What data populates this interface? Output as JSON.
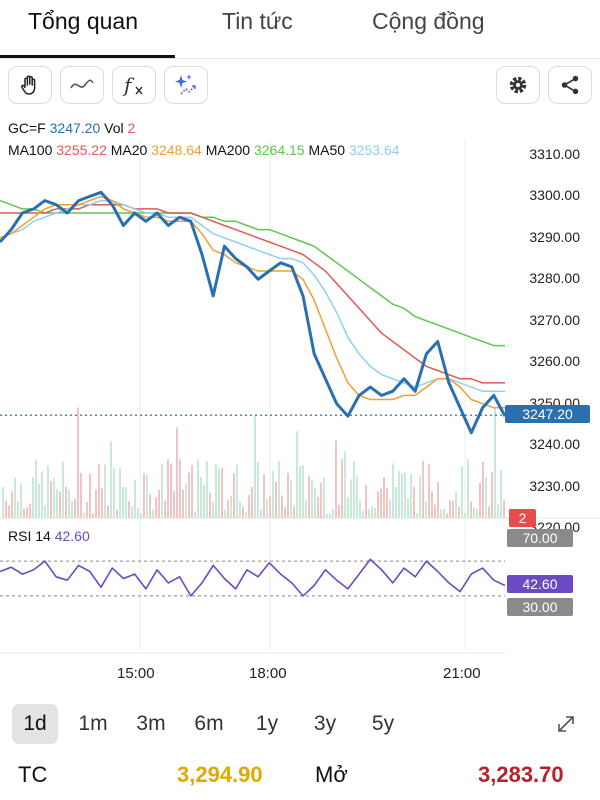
{
  "tabs": [
    {
      "label": "Tổng quan",
      "active": true
    },
    {
      "label": "Tin tức"
    },
    {
      "label": "Cộng đồng"
    }
  ],
  "toolbar": {
    "icons": [
      "hand-icon",
      "line-icon",
      "function-icon",
      "sparkle-icon",
      "gear-icon",
      "share-icon"
    ],
    "fx_label": "f"
  },
  "quote": {
    "symbol": "GC=F",
    "price": "3247.20",
    "vol_label": "Vol",
    "vol": "2"
  },
  "ma": [
    {
      "label": "MA100",
      "value": "3255.22",
      "color": "#e05a55"
    },
    {
      "label": "MA20",
      "value": "3248.64",
      "color": "#f0a030"
    },
    {
      "label": "MA200",
      "value": "3264.15",
      "color": "#5dc84e"
    },
    {
      "label": "MA50",
      "value": "3253.64",
      "color": "#8fd0f0"
    }
  ],
  "rsi": {
    "label": "RSI 14",
    "value": "42.60",
    "upper": "70.00",
    "lower": "30.00",
    "color": "#6a4bc4"
  },
  "chart_data": {
    "type": "line",
    "x_ticks": [
      "15:00",
      "18:00",
      "21:00"
    ],
    "y_ticks": [
      "3310.00",
      "3300.00",
      "3290.00",
      "3280.00",
      "3270.00",
      "3260.00",
      "3250.00",
      "3240.00",
      "3230.00",
      "3220.00"
    ],
    "ylim": [
      3220,
      3310
    ],
    "last_price": "3247.20",
    "vol_tag": "2",
    "price_color": "#2a6fb0",
    "series": [
      {
        "name": "GC=F",
        "values": [
          3289,
          3292,
          3296,
          3297,
          3299,
          3298,
          3296,
          3299,
          3300,
          3301,
          3298,
          3293,
          3296,
          3294,
          3296,
          3293,
          3295,
          3294,
          3286,
          3276,
          3288,
          3285,
          3283,
          3280,
          3282,
          3284,
          3283,
          3276,
          3262,
          3256,
          3250,
          3247,
          3252,
          3254,
          3252,
          3253,
          3256,
          3253,
          3262,
          3265,
          3255,
          3249,
          3243,
          3249,
          3252,
          3247
        ]
      },
      {
        "name": "MA20",
        "values": [
          3290,
          3291,
          3293,
          3295,
          3297,
          3298,
          3298,
          3298,
          3299,
          3300,
          3299,
          3297,
          3296,
          3295,
          3295,
          3294,
          3294,
          3294,
          3291,
          3287,
          3286,
          3284,
          3283,
          3282,
          3282,
          3282,
          3282,
          3280,
          3275,
          3268,
          3261,
          3255,
          3252,
          3251,
          3251,
          3251,
          3252,
          3252,
          3254,
          3256,
          3256,
          3254,
          3251,
          3250,
          3249,
          3249
        ]
      },
      {
        "name": "MA50",
        "values": [
          3290,
          3291,
          3292,
          3294,
          3295,
          3296,
          3297,
          3298,
          3298,
          3299,
          3299,
          3298,
          3297,
          3296,
          3296,
          3295,
          3295,
          3295,
          3293,
          3291,
          3290,
          3289,
          3288,
          3287,
          3286,
          3285,
          3285,
          3284,
          3281,
          3277,
          3272,
          3266,
          3262,
          3259,
          3257,
          3256,
          3255,
          3254,
          3255,
          3256,
          3256,
          3255,
          3254,
          3253,
          3253,
          3253
        ]
      },
      {
        "name": "MA100",
        "values": [
          3296,
          3296,
          3296,
          3296,
          3296,
          3297,
          3297,
          3297,
          3298,
          3298,
          3298,
          3298,
          3297,
          3297,
          3297,
          3296,
          3296,
          3296,
          3295,
          3294,
          3293,
          3292,
          3291,
          3290,
          3289,
          3288,
          3287,
          3286,
          3284,
          3282,
          3279,
          3276,
          3273,
          3270,
          3267,
          3265,
          3263,
          3261,
          3259,
          3258,
          3257,
          3256,
          3256,
          3255,
          3255,
          3255
        ]
      },
      {
        "name": "MA200",
        "values": [
          3299,
          3298,
          3297,
          3297,
          3296,
          3296,
          3296,
          3296,
          3296,
          3296,
          3296,
          3296,
          3296,
          3296,
          3296,
          3296,
          3296,
          3296,
          3295,
          3295,
          3294,
          3294,
          3293,
          3292,
          3292,
          3291,
          3290,
          3289,
          3288,
          3286,
          3284,
          3282,
          3280,
          3278,
          3276,
          3274,
          3273,
          3271,
          3270,
          3269,
          3268,
          3267,
          3266,
          3265,
          3264,
          3264
        ]
      },
      {
        "name": "RSI 14",
        "values": [
          58,
          63,
          55,
          60,
          70,
          52,
          48,
          65,
          58,
          40,
          62,
          50,
          55,
          38,
          60,
          45,
          52,
          30,
          45,
          65,
          50,
          38,
          60,
          52,
          68,
          55,
          45,
          30,
          42,
          60,
          48,
          38,
          55,
          72,
          60,
          45,
          62,
          52,
          70,
          58,
          45,
          35,
          55,
          62,
          48,
          42
        ]
      }
    ]
  },
  "ranges": [
    {
      "label": "1d",
      "active": true
    },
    {
      "label": "1m"
    },
    {
      "label": "3m"
    },
    {
      "label": "6m"
    },
    {
      "label": "1y"
    },
    {
      "label": "3y"
    },
    {
      "label": "5y"
    }
  ],
  "expand_icon": "expand-icon",
  "footer": {
    "tc_label": "TC",
    "tc_value": "3,294.90",
    "open_label": "Mở",
    "open_value": "3,283.70"
  }
}
